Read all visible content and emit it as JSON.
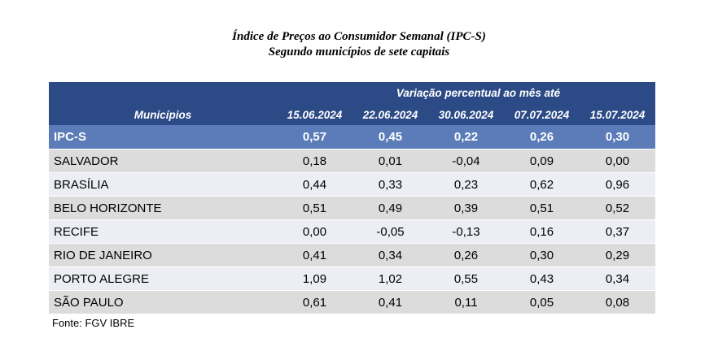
{
  "title": {
    "line1": "Índice de Preços ao Consumidor Semanal (IPC-S)",
    "line2": "Segundo municípios de sete capitais"
  },
  "table": {
    "super_header": "Variação percentual ao mês até",
    "column_header": "Municípios",
    "dates": [
      "15.06.2024",
      "22.06.2024",
      "30.06.2024",
      "07.07.2024",
      "15.07.2024"
    ],
    "rows": [
      {
        "name": "IPC-S",
        "values": [
          "0,57",
          "0,45",
          "0,22",
          "0,26",
          "0,30"
        ]
      },
      {
        "name": "SALVADOR",
        "values": [
          "0,18",
          "0,01",
          "-0,04",
          "0,09",
          "0,00"
        ]
      },
      {
        "name": "BRASÍLIA",
        "values": [
          "0,44",
          "0,33",
          "0,23",
          "0,62",
          "0,96"
        ]
      },
      {
        "name": "BELO HORIZONTE",
        "values": [
          "0,51",
          "0,49",
          "0,39",
          "0,51",
          "0,52"
        ]
      },
      {
        "name": "RECIFE",
        "values": [
          "0,00",
          "-0,05",
          "-0,13",
          "0,16",
          "0,37"
        ]
      },
      {
        "name": "RIO DE JANEIRO",
        "values": [
          "0,41",
          "0,34",
          "0,26",
          "0,30",
          "0,29"
        ]
      },
      {
        "name": "PORTO ALEGRE",
        "values": [
          "1,09",
          "1,02",
          "0,55",
          "0,43",
          "0,34"
        ]
      },
      {
        "name": "SÃO PAULO",
        "values": [
          "0,61",
          "0,41",
          "0,11",
          "0,05",
          "0,08"
        ]
      }
    ]
  },
  "source": "Fonte: FGV IBRE",
  "colors": {
    "header_bg": "#2b4a86",
    "highlight_bg": "#5b7cb8",
    "row_gray": "#dcdcdc",
    "row_light": "#eceef4"
  }
}
